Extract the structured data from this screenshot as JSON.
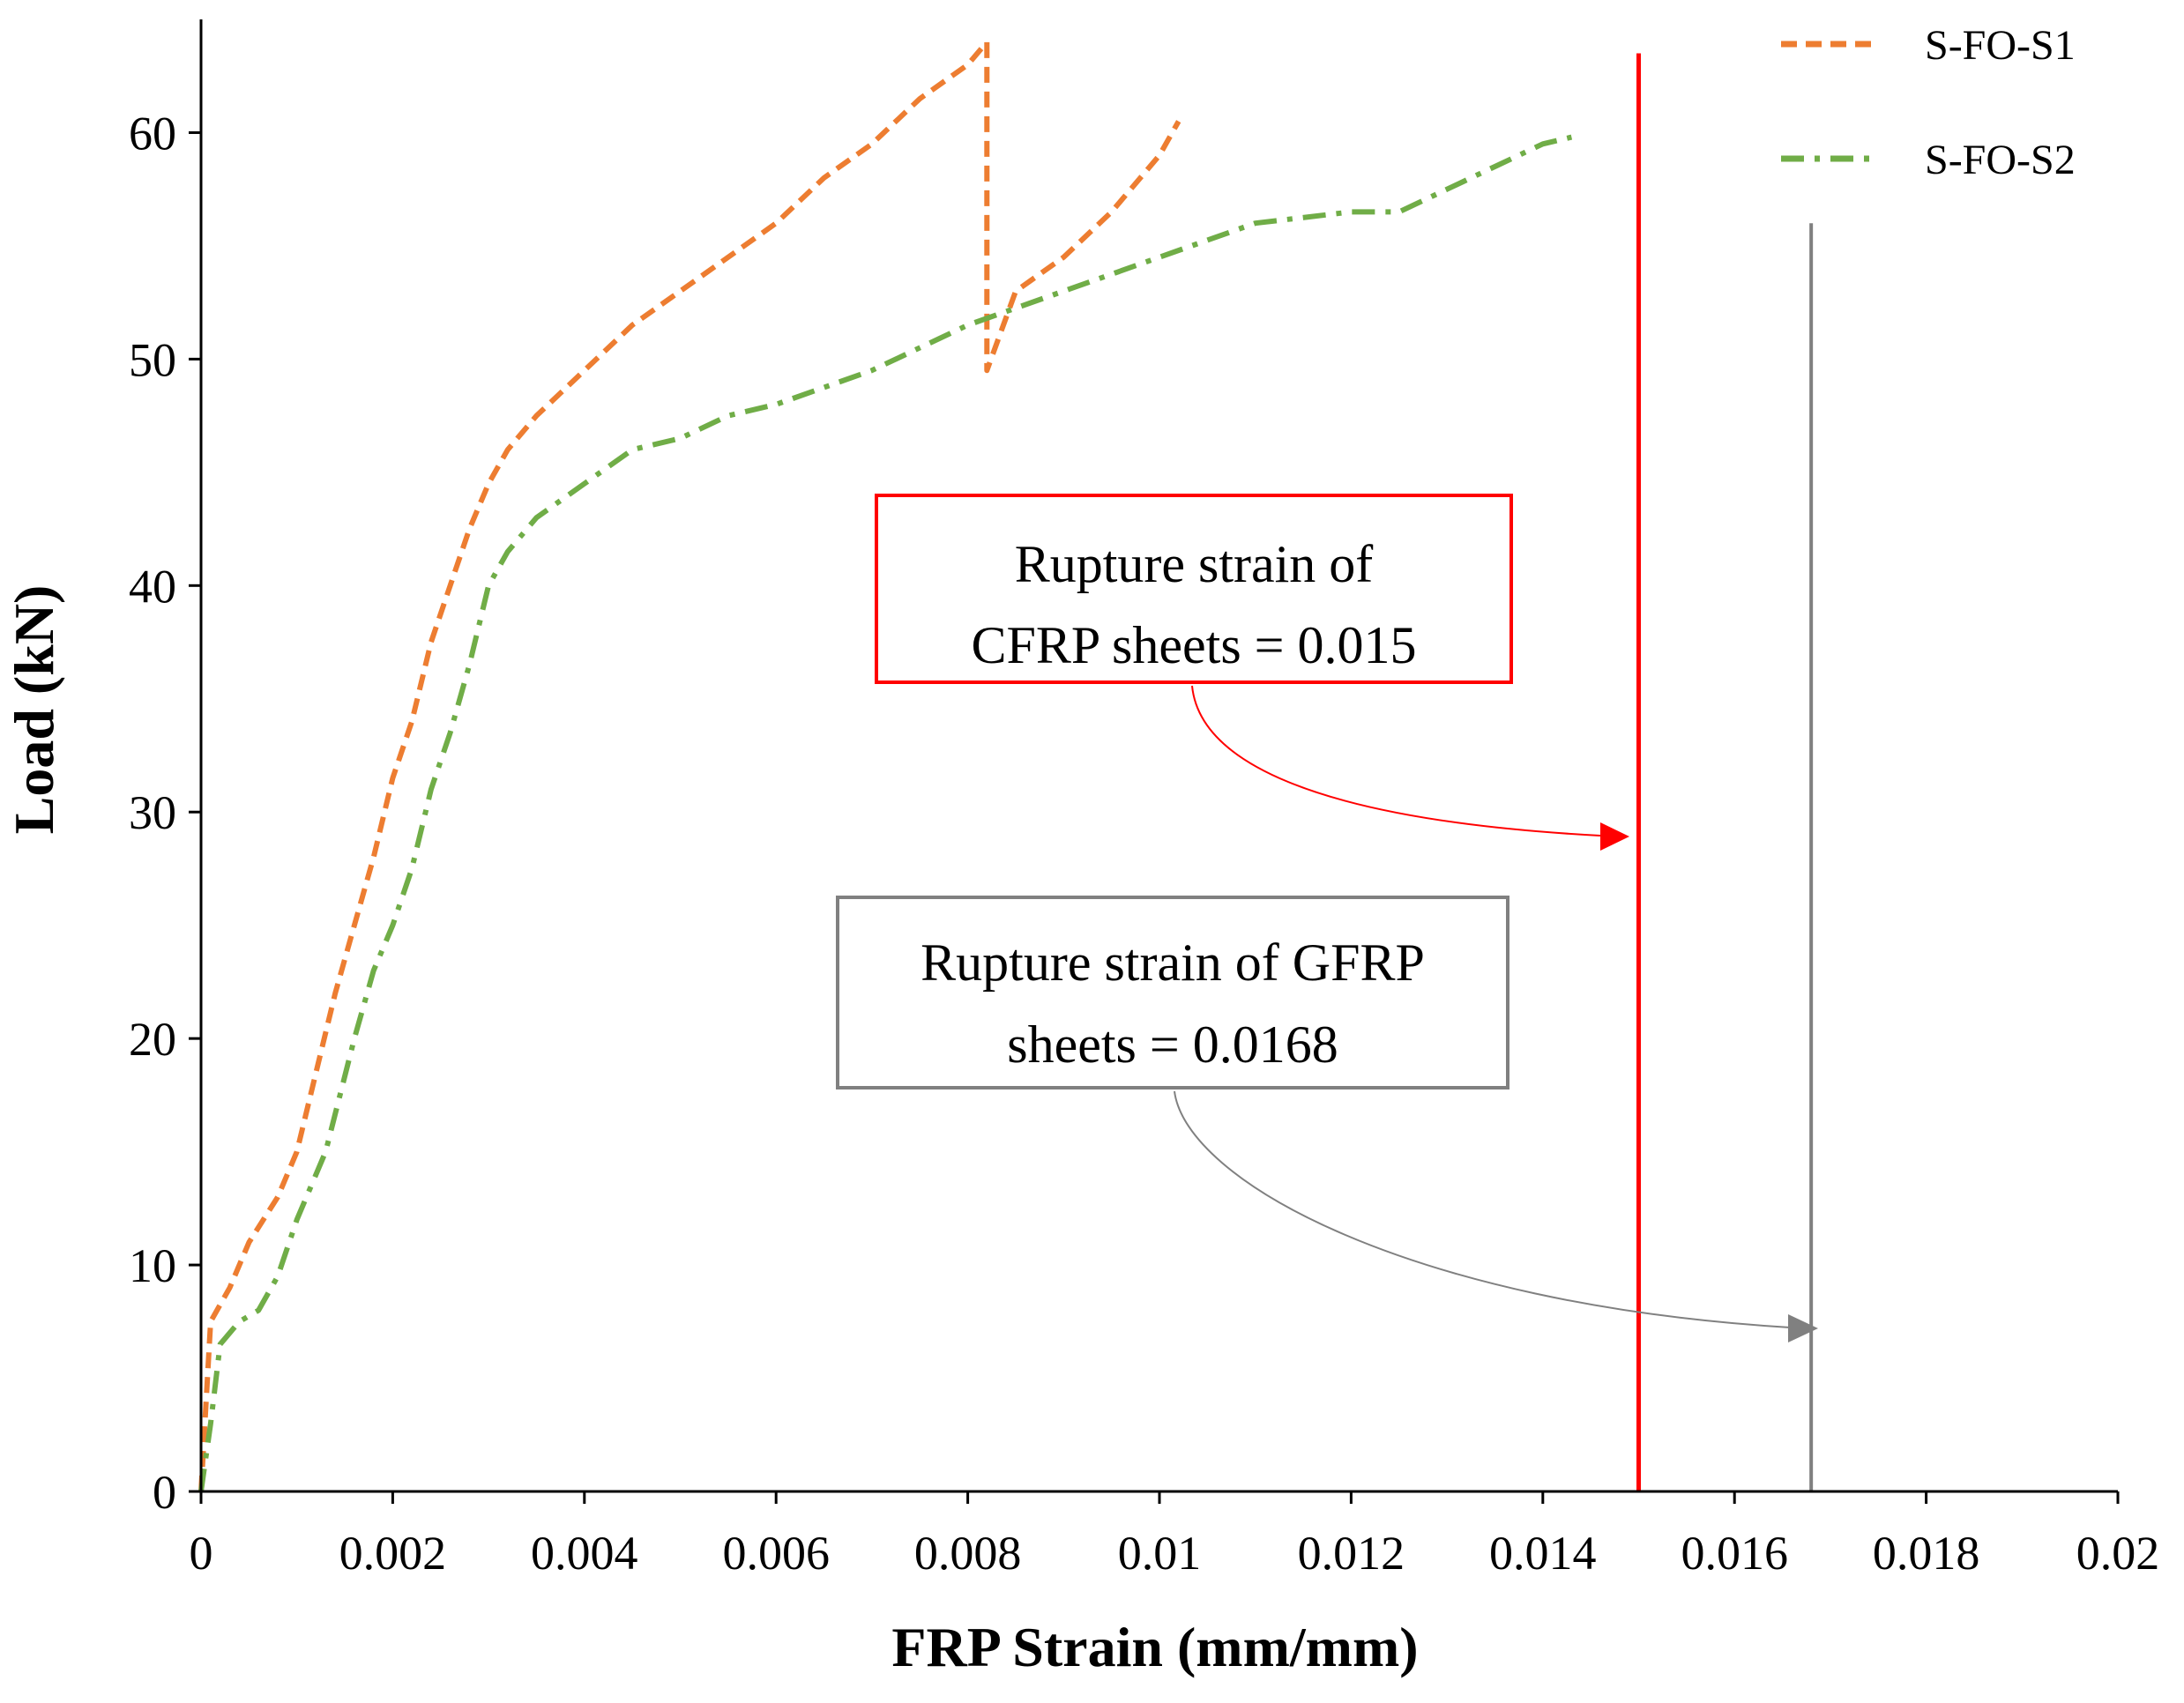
{
  "chart_data": {
    "type": "line",
    "title": "",
    "xlabel": "FRP Strain (mm/mm)",
    "ylabel": "Load (kN)",
    "xlim": [
      0,
      0.02
    ],
    "ylim": [
      0,
      65
    ],
    "x_ticks": [
      "0",
      "0.002",
      "0.004",
      "0.006",
      "0.008",
      "0.01",
      "0.012",
      "0.014",
      "0.016",
      "0.018",
      "0.02"
    ],
    "y_ticks": [
      "0",
      "10",
      "20",
      "30",
      "40",
      "50",
      "60"
    ],
    "grid": false,
    "legend_position": "top-right",
    "series": [
      {
        "name": "S-FO-S1",
        "color": "#ED7D31",
        "line_style": "dashed",
        "points": [
          [
            0,
            0
          ],
          [
            0.0001,
            7.5
          ],
          [
            0.0003,
            9
          ],
          [
            0.0005,
            11
          ],
          [
            0.0008,
            13
          ],
          [
            0.001,
            15
          ],
          [
            0.0012,
            18.5
          ],
          [
            0.0014,
            22
          ],
          [
            0.0016,
            25
          ],
          [
            0.0018,
            28
          ],
          [
            0.002,
            31.5
          ],
          [
            0.0022,
            34
          ],
          [
            0.0024,
            37.5
          ],
          [
            0.0026,
            40
          ],
          [
            0.0028,
            42.5
          ],
          [
            0.003,
            44.5
          ],
          [
            0.0032,
            46
          ],
          [
            0.0035,
            47.5
          ],
          [
            0.004,
            49.5
          ],
          [
            0.0045,
            51.5
          ],
          [
            0.005,
            53
          ],
          [
            0.0055,
            54.5
          ],
          [
            0.006,
            56
          ],
          [
            0.0065,
            58
          ],
          [
            0.007,
            59.5
          ],
          [
            0.0075,
            61.5
          ],
          [
            0.008,
            63
          ],
          [
            0.0082,
            64
          ],
          [
            0.0082,
            49.5
          ],
          [
            0.0085,
            53
          ],
          [
            0.009,
            54.5
          ],
          [
            0.0095,
            56.5
          ],
          [
            0.01,
            59
          ],
          [
            0.0102,
            60.5
          ]
        ]
      },
      {
        "name": "S-FO-S2",
        "color": "#70AD47",
        "line_style": "dash-dot",
        "points": [
          [
            0,
            0
          ],
          [
            0.0001,
            3
          ],
          [
            0.0002,
            6.5
          ],
          [
            0.0004,
            7.5
          ],
          [
            0.0006,
            8
          ],
          [
            0.0008,
            9.5
          ],
          [
            0.001,
            12
          ],
          [
            0.0013,
            15
          ],
          [
            0.0016,
            20
          ],
          [
            0.0018,
            23
          ],
          [
            0.002,
            25
          ],
          [
            0.0022,
            27.5
          ],
          [
            0.0024,
            31
          ],
          [
            0.0026,
            33.5
          ],
          [
            0.0028,
            36.5
          ],
          [
            0.003,
            40
          ],
          [
            0.0032,
            41.5
          ],
          [
            0.0035,
            43
          ],
          [
            0.004,
            44.5
          ],
          [
            0.0045,
            46
          ],
          [
            0.005,
            46.5
          ],
          [
            0.0055,
            47.5
          ],
          [
            0.006,
            48
          ],
          [
            0.007,
            49.5
          ],
          [
            0.008,
            51.5
          ],
          [
            0.009,
            53
          ],
          [
            0.01,
            54.5
          ],
          [
            0.011,
            56
          ],
          [
            0.012,
            56.5
          ],
          [
            0.0125,
            56.5
          ],
          [
            0.013,
            57.5
          ],
          [
            0.0135,
            58.5
          ],
          [
            0.014,
            59.5
          ],
          [
            0.0143,
            59.8
          ]
        ]
      }
    ],
    "reference_lines": [
      {
        "x": 0.015,
        "y_max": 63.5,
        "color": "#FF0000"
      },
      {
        "x": 0.0168,
        "y_max": 56,
        "color": "#808080"
      }
    ],
    "annotations": [
      {
        "lines": [
          "Rupture strain of",
          "CFRP sheets = 0.015"
        ],
        "border_color": "#FF0000",
        "arrow_target": [
          0.015,
          28.8
        ]
      },
      {
        "lines": [
          "Rupture strain of GFRP",
          "sheets = 0.0168"
        ],
        "border_color": "#808080",
        "arrow_target": [
          0.0168,
          7.2
        ]
      }
    ]
  }
}
